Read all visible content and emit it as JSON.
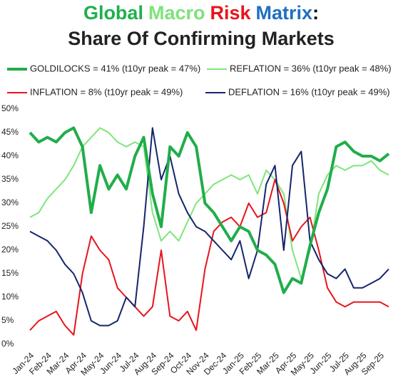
{
  "chart_data": {
    "type": "line",
    "title_parts": [
      {
        "text": "Global",
        "color": "#1eb04b"
      },
      {
        "text": "Macro",
        "color": "#7ee27a"
      },
      {
        "text": "Risk",
        "color": "#e8141c"
      },
      {
        "text": "Matrix",
        "color": "#1f6fc0"
      },
      {
        "text": ":",
        "color": "#000000"
      }
    ],
    "subtitle": "Share Of Confirming Markets",
    "categories": [
      "Jan-24",
      null,
      "Feb-24",
      null,
      "Mar-24",
      null,
      "Apr-24",
      null,
      "May-24",
      null,
      "Jun-24",
      null,
      "Jul-24",
      null,
      "Aug-24",
      null,
      "Sep-24",
      null,
      "Oct-24",
      null,
      "Nov-24",
      null,
      "Dec-24",
      null,
      "Jan-25",
      null,
      "Feb-25",
      null,
      "Mar-25",
      null,
      "Apr-25",
      null,
      "May-25",
      null,
      "Jun-25",
      null,
      "Jul-25",
      null,
      "Aug-25",
      null,
      "Sep-25",
      null
    ],
    "series": [
      {
        "name": "GOLDILOCKS = 41% (t10yr peak = 47%)",
        "color": "#21ad4a",
        "width": 4,
        "values": [
          45,
          43,
          44,
          43,
          45,
          46,
          42,
          28,
          38,
          33,
          36,
          33,
          40,
          44,
          32,
          25,
          42,
          40,
          45,
          42,
          30,
          28,
          25,
          22,
          25,
          24,
          20,
          19,
          17,
          11,
          14,
          13,
          21,
          28,
          33,
          42,
          43,
          41,
          40,
          40,
          39,
          40.5
        ]
      },
      {
        "name": "REFLATION = 36% (t10yr peak = 48%)",
        "color": "#7fe57a",
        "width": 2,
        "values": [
          27,
          28,
          31,
          33,
          35,
          38,
          42,
          44,
          46,
          45,
          43,
          42,
          43,
          42,
          28,
          22,
          24,
          22,
          26,
          30,
          32,
          34,
          35,
          36,
          35,
          36,
          32,
          37,
          35,
          32,
          20,
          14,
          20,
          32,
          36,
          38,
          37,
          38,
          38,
          39,
          37,
          36
        ]
      },
      {
        "name": "INFLATION = 8% (t10yr peak = 49%)",
        "color": "#e8141c",
        "width": 2,
        "values": [
          3,
          5,
          6,
          7,
          4,
          2,
          15,
          23,
          20,
          18,
          12,
          10,
          8,
          6,
          8,
          20,
          6,
          5,
          7,
          3,
          16,
          24,
          26,
          27,
          25,
          30,
          27,
          28,
          35,
          30,
          22,
          25,
          27,
          20,
          12,
          9,
          8,
          9,
          9,
          9,
          9,
          8
        ]
      },
      {
        "name": "DEFLATION = 16% (t10yr peak = 49%)",
        "color": "#14256b",
        "width": 2,
        "values": [
          24,
          23,
          22,
          20,
          17,
          15,
          11,
          5,
          4,
          4,
          5,
          10,
          8,
          25,
          46,
          35,
          40,
          32,
          28,
          25,
          24,
          22,
          20,
          18,
          22,
          14,
          20,
          34,
          38,
          20,
          38,
          41,
          22,
          18,
          15,
          14,
          16,
          12,
          12,
          13,
          14,
          16
        ]
      }
    ],
    "ylim": [
      0,
      50
    ],
    "yticks": [
      {
        "value": 0,
        "label": "0%"
      },
      {
        "value": 5,
        "label": "5%"
      },
      {
        "value": 10,
        "label": "10%"
      },
      {
        "value": 15,
        "label": "15%"
      },
      {
        "value": 20,
        "label": "20%"
      },
      {
        "value": 25,
        "label": "25%"
      },
      {
        "value": 30,
        "label": "30%"
      },
      {
        "value": 35,
        "label": "35%"
      },
      {
        "value": 40,
        "label": "40%"
      },
      {
        "value": 45,
        "label": "45%"
      },
      {
        "value": 50,
        "label": "50%"
      }
    ],
    "grid": false
  }
}
